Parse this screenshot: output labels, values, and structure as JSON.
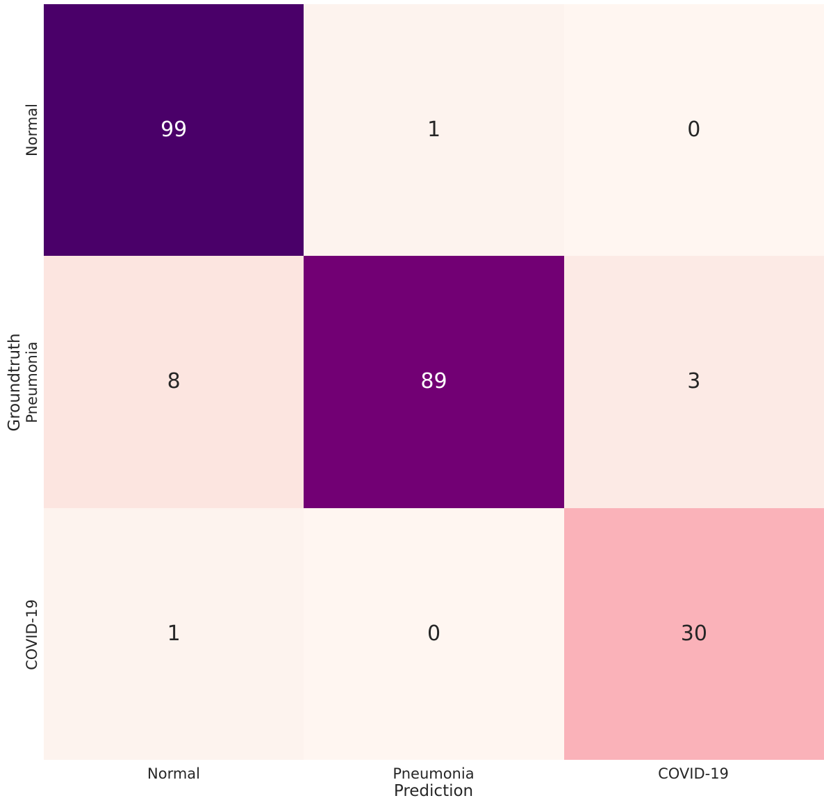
{
  "chart_data": {
    "type": "heatmap",
    "subtype": "confusion-matrix",
    "xlabel": "Prediction",
    "ylabel": "Groundtruth",
    "x_categories": [
      "Normal",
      "Pneumonia",
      "COVID-19"
    ],
    "y_categories": [
      "Normal",
      "Pneumonia",
      "COVID-19"
    ],
    "values": [
      [
        99,
        1,
        0
      ],
      [
        8,
        89,
        3
      ],
      [
        1,
        0,
        30
      ]
    ],
    "vmin": 0,
    "vmax": 99,
    "colormap": "RdPu",
    "grid": false,
    "legend": "none",
    "colors": {
      "background": "#ffffff",
      "text": "#262626",
      "annot_on_dark": "#ffffff",
      "annot_on_light": "#262626"
    },
    "cell_colors": [
      [
        "#4a0069",
        "#fdf3ee",
        "#fff6f1"
      ],
      [
        "#fce5e0",
        "#720074",
        "#fceae5"
      ],
      [
        "#fdf3ee",
        "#fff6f1",
        "#fab2b9"
      ]
    ],
    "annot_colors": [
      [
        "#ffffff",
        "#262626",
        "#262626"
      ],
      [
        "#262626",
        "#ffffff",
        "#262626"
      ],
      [
        "#262626",
        "#262626",
        "#262626"
      ]
    ]
  }
}
